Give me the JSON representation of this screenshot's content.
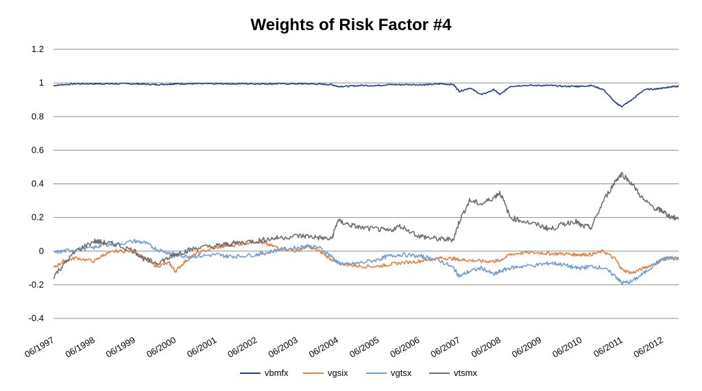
{
  "chart_data": {
    "type": "line",
    "title": "Weights of Risk Factor #4",
    "xlabel": "",
    "ylabel": "",
    "ylim": [
      -0.4,
      1.2
    ],
    "yticks": [
      1.2,
      1,
      0.8,
      0.6,
      0.4,
      0.2,
      0,
      -0.2,
      -0.4
    ],
    "ytick_labels": [
      "1.2",
      "1",
      "0.8",
      "0.6",
      "0.4",
      "0.2",
      "0",
      "-0.2",
      "-0.4"
    ],
    "xlim": [
      1997.45,
      2012.85
    ],
    "xtick_labels": [
      "06/1997",
      "06/1998",
      "06/1999",
      "06/2000",
      "06/2001",
      "06/2002",
      "06/2003",
      "06/2004",
      "06/2005",
      "06/2006",
      "06/2007",
      "06/2008",
      "06/2009",
      "06/2010",
      "06/2011",
      "06/2012"
    ],
    "xtick_values": [
      1997.45,
      1998.45,
      1999.45,
      2000.45,
      2001.45,
      2002.45,
      2003.45,
      2004.45,
      2005.45,
      2006.45,
      2007.45,
      2008.45,
      2009.45,
      2010.45,
      2011.45,
      2012.45
    ],
    "grid": true,
    "legend_position": "bottom",
    "x": [
      1997.45,
      1997.7,
      1998.0,
      1998.45,
      1998.7,
      1999.0,
      1999.45,
      1999.7,
      2000.0,
      2000.3,
      2000.45,
      2000.7,
      2001.0,
      2001.45,
      2001.7,
      2002.0,
      2002.45,
      2002.7,
      2003.0,
      2003.45,
      2003.7,
      2004.0,
      2004.3,
      2004.45,
      2004.7,
      2005.0,
      2005.45,
      2005.7,
      2006.0,
      2006.45,
      2006.7,
      2007.0,
      2007.3,
      2007.45,
      2007.7,
      2008.0,
      2008.3,
      2008.45,
      2008.7,
      2009.0,
      2009.45,
      2009.7,
      2010.0,
      2010.3,
      2010.45,
      2010.7,
      2011.0,
      2011.3,
      2011.45,
      2011.7,
      2012.0,
      2012.3,
      2012.45,
      2012.6,
      2012.85
    ],
    "series": [
      {
        "name": "vbmfx",
        "color": "#1f3f7f",
        "values": [
          0.985,
          0.99,
          0.995,
          0.995,
          0.995,
          0.995,
          0.995,
          0.993,
          0.99,
          0.993,
          0.995,
          0.995,
          0.995,
          0.995,
          0.995,
          0.995,
          0.995,
          0.995,
          0.995,
          0.995,
          0.995,
          0.993,
          0.99,
          0.98,
          0.98,
          0.985,
          0.985,
          0.99,
          0.99,
          0.99,
          0.99,
          0.995,
          0.99,
          0.95,
          0.97,
          0.93,
          0.96,
          0.93,
          0.98,
          0.985,
          0.985,
          0.985,
          0.98,
          0.98,
          0.98,
          0.985,
          0.96,
          0.88,
          0.86,
          0.9,
          0.96,
          0.965,
          0.97,
          0.975,
          0.98
        ]
      },
      {
        "name": "vgsix",
        "color": "#e8803f",
        "values": [
          -0.1,
          -0.06,
          -0.04,
          -0.06,
          -0.02,
          0.0,
          0.0,
          -0.05,
          -0.09,
          -0.07,
          -0.12,
          -0.06,
          -0.01,
          0.02,
          0.03,
          0.04,
          0.06,
          0.04,
          0.02,
          0.0,
          0.03,
          0.0,
          -0.05,
          -0.07,
          -0.08,
          -0.09,
          -0.09,
          -0.08,
          -0.07,
          -0.06,
          -0.05,
          -0.04,
          -0.045,
          -0.05,
          -0.055,
          -0.06,
          -0.06,
          -0.055,
          -0.02,
          -0.01,
          -0.01,
          -0.015,
          -0.015,
          -0.02,
          -0.02,
          -0.02,
          0.0,
          -0.05,
          -0.11,
          -0.13,
          -0.1,
          -0.07,
          -0.05,
          -0.04,
          -0.05
        ]
      },
      {
        "name": "vgtsx",
        "color": "#6f9fd0",
        "values": [
          -0.01,
          0.0,
          0.01,
          0.02,
          0.04,
          0.04,
          0.06,
          0.05,
          0.01,
          -0.01,
          -0.02,
          -0.03,
          -0.03,
          -0.02,
          -0.03,
          -0.03,
          -0.02,
          -0.01,
          0.01,
          0.02,
          0.03,
          0.02,
          -0.03,
          -0.07,
          -0.08,
          -0.07,
          -0.05,
          -0.03,
          -0.02,
          -0.03,
          -0.04,
          -0.06,
          -0.1,
          -0.15,
          -0.12,
          -0.1,
          -0.14,
          -0.12,
          -0.1,
          -0.09,
          -0.08,
          -0.07,
          -0.08,
          -0.1,
          -0.1,
          -0.09,
          -0.1,
          -0.15,
          -0.19,
          -0.18,
          -0.13,
          -0.07,
          -0.05,
          -0.04,
          -0.04
        ]
      },
      {
        "name": "vtsmx",
        "color": "#6e6e6e",
        "values": [
          -0.15,
          -0.08,
          0.0,
          0.06,
          0.05,
          0.04,
          0.0,
          -0.05,
          -0.07,
          -0.04,
          -0.02,
          0.0,
          0.02,
          0.03,
          0.04,
          0.05,
          0.06,
          0.07,
          0.08,
          0.09,
          0.09,
          0.08,
          0.07,
          0.18,
          0.16,
          0.14,
          0.13,
          0.12,
          0.15,
          0.09,
          0.08,
          0.07,
          0.07,
          0.18,
          0.3,
          0.28,
          0.32,
          0.35,
          0.2,
          0.18,
          0.15,
          0.13,
          0.16,
          0.18,
          0.15,
          0.14,
          0.3,
          0.42,
          0.46,
          0.4,
          0.3,
          0.25,
          0.24,
          0.21,
          0.19
        ]
      }
    ]
  }
}
